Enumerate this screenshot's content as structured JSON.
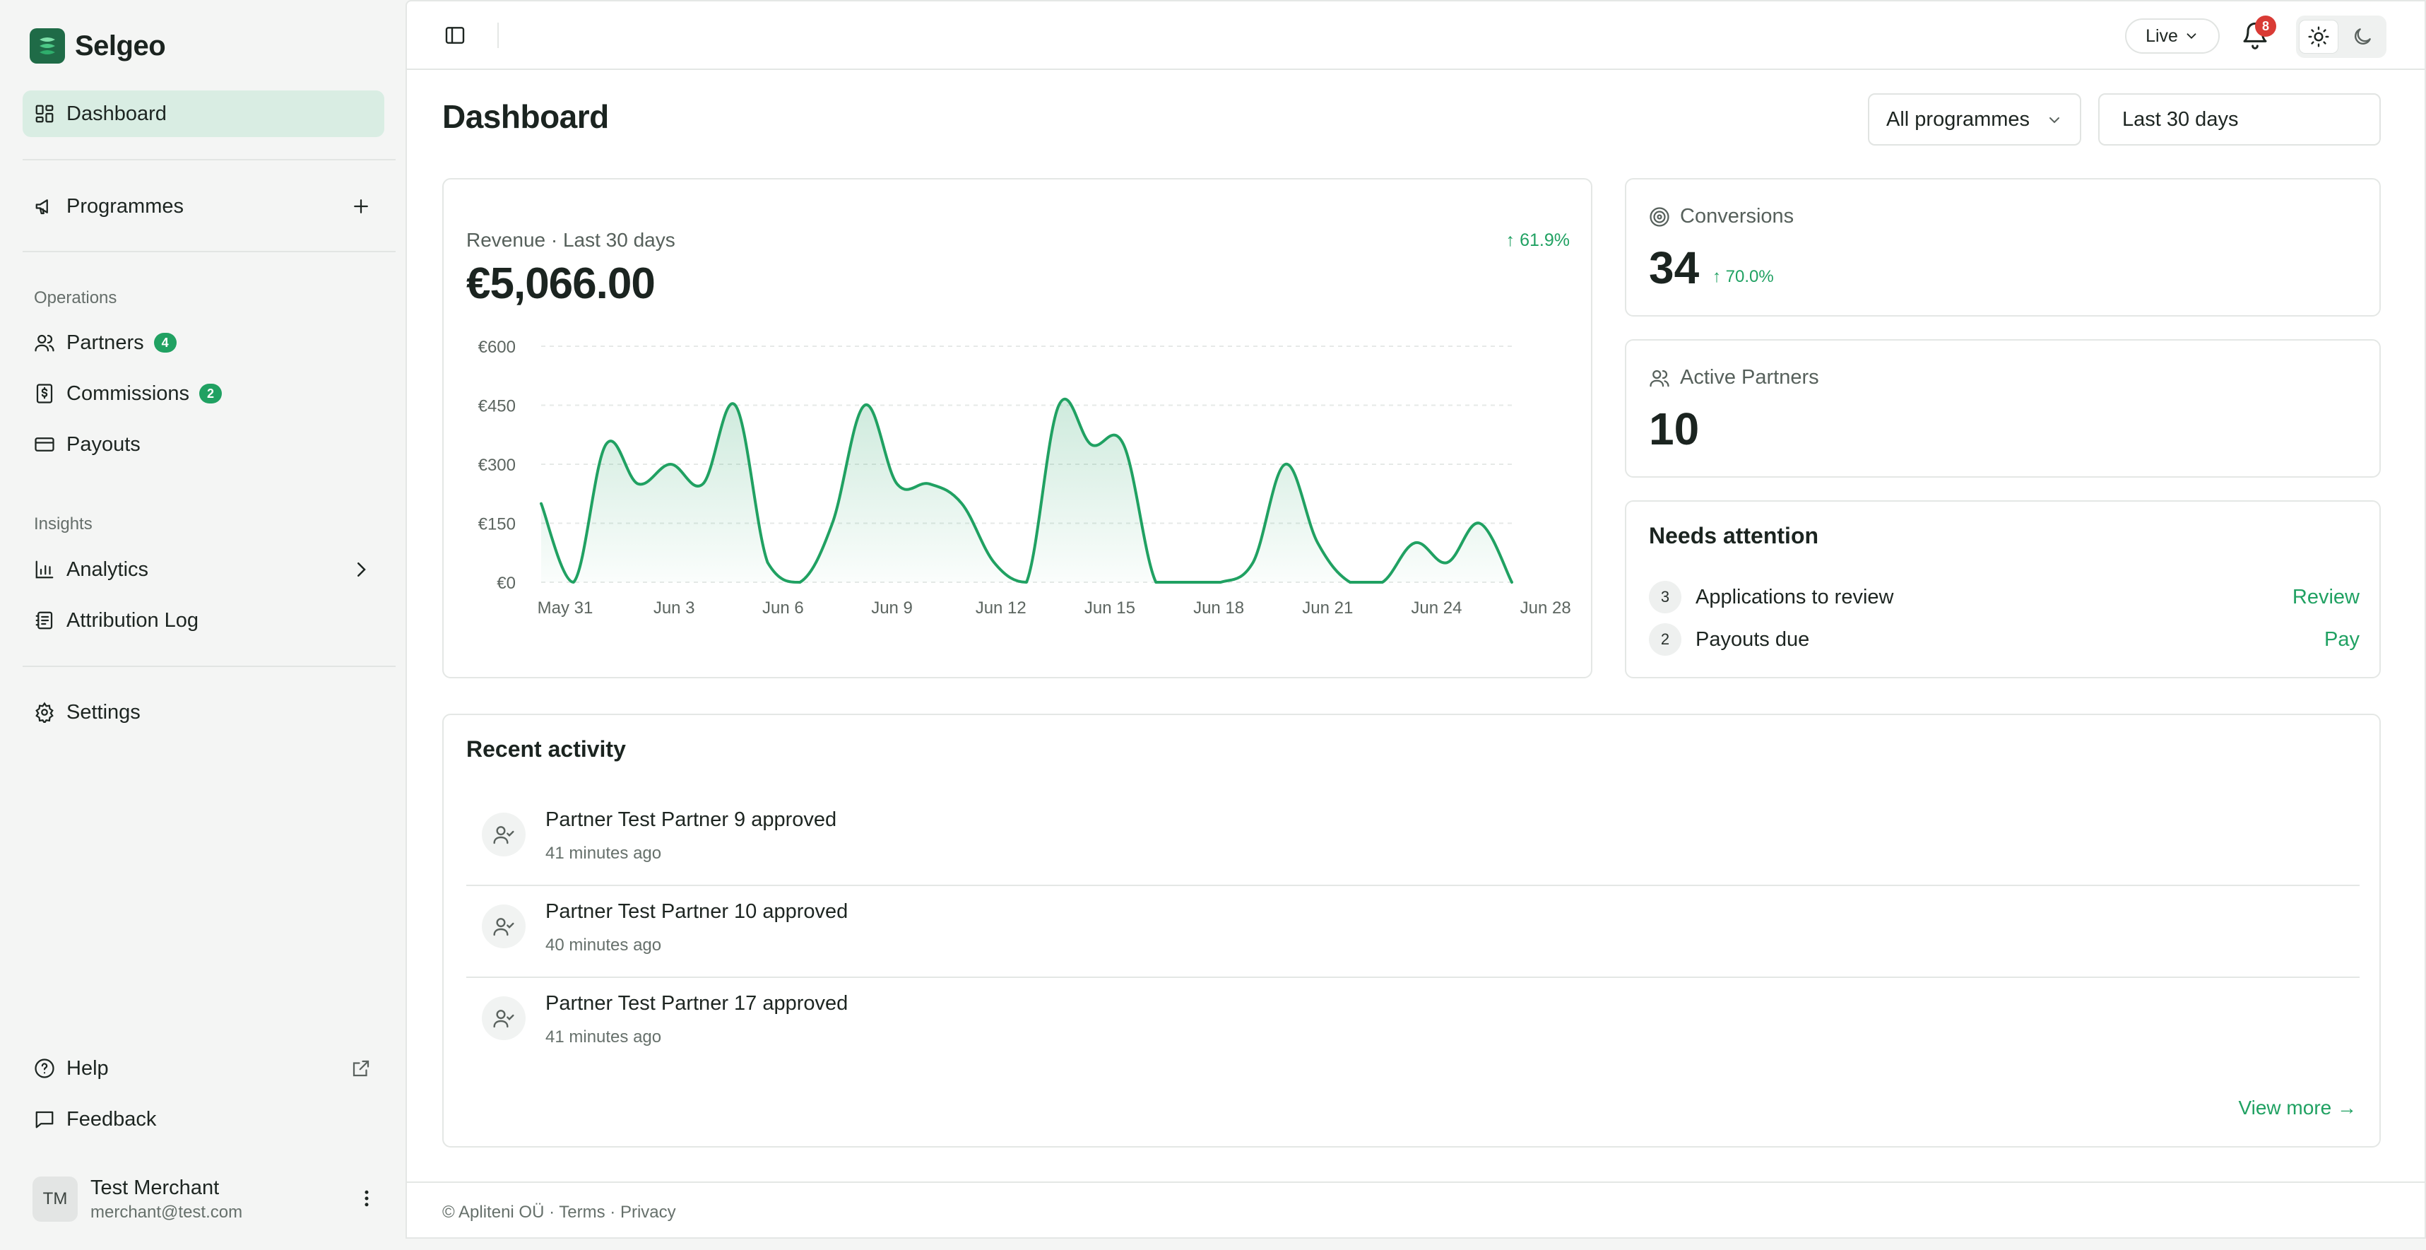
{
  "brand": {
    "name": "Selgeo"
  },
  "sidebar": {
    "dashboard": "Dashboard",
    "programmes": "Programmes",
    "operations_label": "Operations",
    "partners": {
      "label": "Partners",
      "badge": "4"
    },
    "commissions": {
      "label": "Commissions",
      "badge": "2"
    },
    "payouts": "Payouts",
    "insights_label": "Insights",
    "analytics": "Analytics",
    "attribution_log": "Attribution Log",
    "settings": "Settings",
    "help": "Help",
    "feedback": "Feedback"
  },
  "user": {
    "initials": "TM",
    "name": "Test Merchant",
    "email": "merchant@test.com"
  },
  "topbar": {
    "mode": "Live",
    "notifications": "8"
  },
  "page": {
    "title": "Dashboard",
    "programme_filter": "All programmes",
    "range_filter": "Last 30 days"
  },
  "revenue": {
    "label": "Revenue · Last 30 days",
    "value": "€5,066.00",
    "delta": "↑ 61.9%"
  },
  "conversions": {
    "label": "Conversions",
    "value": "34",
    "delta": "↑ 70.0%"
  },
  "active_partners": {
    "label": "Active Partners",
    "value": "10"
  },
  "attention": {
    "title": "Needs attention",
    "items": [
      {
        "count": "3",
        "text": "Applications to review",
        "action": "Review"
      },
      {
        "count": "2",
        "text": "Payouts due",
        "action": "Pay"
      }
    ]
  },
  "activity": {
    "title": "Recent activity",
    "items": [
      {
        "text": "Partner Test Partner 9 approved",
        "time": "41 minutes ago"
      },
      {
        "text": "Partner Test Partner 10 approved",
        "time": "40 minutes ago"
      },
      {
        "text": "Partner Test Partner 17 approved",
        "time": "41 minutes ago"
      }
    ],
    "view_more": "View more →"
  },
  "footer": {
    "text": "© Apliteni OÜ · Terms · Privacy"
  },
  "colors": {
    "accent": "#20a162",
    "active_nav": "#d9ede3",
    "badge_red": "#d93b35"
  },
  "chart_data": {
    "type": "area",
    "title": "Revenue · Last 30 days",
    "xlabel": "",
    "ylabel": "",
    "x_ticks": [
      "May 31",
      "Jun 3",
      "Jun 6",
      "Jun 9",
      "Jun 12",
      "Jun 15",
      "Jun 18",
      "Jun 21",
      "Jun 24",
      "Jun 28"
    ],
    "y_ticks": [
      "€0",
      "€150",
      "€300",
      "€450",
      "€600"
    ],
    "ylim": [
      0,
      600
    ],
    "grid": true,
    "series": [
      {
        "values": [
          200,
          0,
          350,
          250,
          300,
          250,
          450,
          50,
          0,
          150,
          450,
          250,
          250,
          200,
          50,
          0,
          450,
          350,
          350,
          0,
          0,
          0,
          50,
          300,
          100,
          0,
          0,
          100,
          50,
          150,
          0
        ]
      }
    ]
  }
}
